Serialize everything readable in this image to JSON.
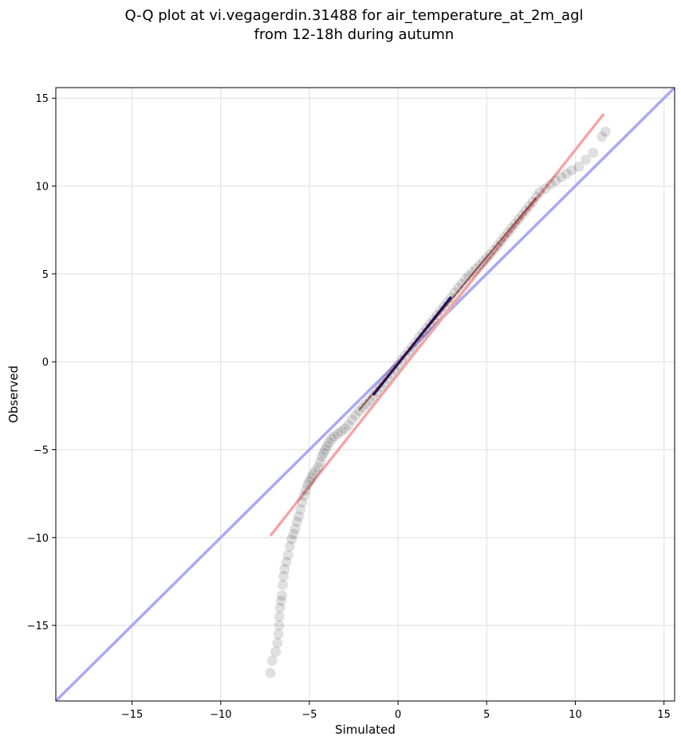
{
  "chart_data": {
    "type": "scatter",
    "title_line1": "Q-Q plot at vi.vegagerdin.31488 for air_temperature_at_2m_agl",
    "title_line2": "from 12-18h during autumn",
    "xlabel": "Simulated",
    "ylabel": "Observed",
    "xlim": [
      -19.3,
      15.6
    ],
    "ylim": [
      -19.3,
      15.6
    ],
    "xticks": [
      -15,
      -10,
      -5,
      0,
      5,
      10,
      15
    ],
    "yticks": [
      -15,
      -10,
      -5,
      0,
      5,
      10,
      15
    ],
    "tick_labels": {
      "-15": "−15",
      "-10": "−10",
      "-5": "−5",
      "0": "0",
      "5": "5",
      "10": "10",
      "15": "15"
    },
    "grid": true,
    "identity_line": {
      "color": "#aaaaf2",
      "x": [
        -19.3,
        15.6
      ],
      "y": [
        -19.3,
        15.6
      ]
    },
    "fit_line": {
      "color": "#f4a6a6",
      "x": [
        -7.2,
        11.6
      ],
      "y": [
        -9.9,
        14.1
      ]
    },
    "points_color": "#000000",
    "center_segment_color": "#1a1a8a",
    "tail_segment_color": "#8b0000",
    "quantiles": [
      [
        -7.2,
        -17.7
      ],
      [
        -7.1,
        -17.0
      ],
      [
        -6.9,
        -16.5
      ],
      [
        -6.8,
        -16.0
      ],
      [
        -6.75,
        -15.5
      ],
      [
        -6.7,
        -15.0
      ],
      [
        -6.7,
        -14.5
      ],
      [
        -6.65,
        -14.0
      ],
      [
        -6.6,
        -13.6
      ],
      [
        -6.55,
        -13.3
      ],
      [
        -6.5,
        -12.7
      ],
      [
        -6.45,
        -12.2
      ],
      [
        -6.4,
        -11.8
      ],
      [
        -6.3,
        -11.4
      ],
      [
        -6.2,
        -11.0
      ],
      [
        -6.1,
        -10.5
      ],
      [
        -6.0,
        -10.1
      ],
      [
        -5.9,
        -9.8
      ],
      [
        -5.8,
        -9.5
      ],
      [
        -5.7,
        -9.1
      ],
      [
        -5.6,
        -8.8
      ],
      [
        -5.5,
        -8.4
      ],
      [
        -5.4,
        -8.0
      ],
      [
        -5.3,
        -7.6
      ],
      [
        -5.2,
        -7.3
      ],
      [
        -5.1,
        -7.0
      ],
      [
        -5.0,
        -6.8
      ],
      [
        -4.9,
        -6.6
      ],
      [
        -4.8,
        -6.4
      ],
      [
        -4.65,
        -6.2
      ],
      [
        -4.5,
        -6.0
      ],
      [
        -4.4,
        -5.7
      ],
      [
        -4.3,
        -5.4
      ],
      [
        -4.2,
        -5.2
      ],
      [
        -4.1,
        -5.0
      ],
      [
        -4.0,
        -4.8
      ],
      [
        -3.9,
        -4.6
      ],
      [
        -3.75,
        -4.4
      ],
      [
        -3.6,
        -4.25
      ],
      [
        -3.4,
        -4.1
      ],
      [
        -3.2,
        -3.95
      ],
      [
        -3.0,
        -3.8
      ],
      [
        -2.8,
        -3.6
      ],
      [
        -2.6,
        -3.3
      ],
      [
        -2.4,
        -3.05
      ],
      [
        -2.2,
        -2.8
      ],
      [
        -2.0,
        -2.6
      ],
      [
        -1.8,
        -2.4
      ],
      [
        -1.6,
        -2.2
      ],
      [
        -1.4,
        -1.95
      ],
      [
        -1.2,
        -1.7
      ],
      [
        -1.0,
        -1.45
      ],
      [
        -0.8,
        -1.2
      ],
      [
        -0.6,
        -0.95
      ],
      [
        -0.4,
        -0.7
      ],
      [
        -0.2,
        -0.45
      ],
      [
        0.0,
        -0.2
      ],
      [
        0.2,
        0.1
      ],
      [
        0.4,
        0.35
      ],
      [
        0.6,
        0.6
      ],
      [
        0.8,
        0.85
      ],
      [
        1.0,
        1.1
      ],
      [
        1.2,
        1.4
      ],
      [
        1.4,
        1.65
      ],
      [
        1.6,
        1.9
      ],
      [
        1.8,
        2.15
      ],
      [
        2.0,
        2.4
      ],
      [
        2.2,
        2.65
      ],
      [
        2.4,
        2.9
      ],
      [
        2.6,
        3.15
      ],
      [
        2.8,
        3.4
      ],
      [
        3.0,
        3.65
      ],
      [
        3.2,
        3.95
      ],
      [
        3.4,
        4.2
      ],
      [
        3.6,
        4.45
      ],
      [
        3.8,
        4.7
      ],
      [
        4.0,
        4.9
      ],
      [
        4.2,
        5.1
      ],
      [
        4.4,
        5.3
      ],
      [
        4.6,
        5.5
      ],
      [
        4.8,
        5.7
      ],
      [
        5.0,
        5.9
      ],
      [
        5.2,
        6.1
      ],
      [
        5.4,
        6.35
      ],
      [
        5.6,
        6.6
      ],
      [
        5.8,
        6.85
      ],
      [
        6.0,
        7.1
      ],
      [
        6.2,
        7.35
      ],
      [
        6.4,
        7.6
      ],
      [
        6.6,
        7.85
      ],
      [
        6.8,
        8.1
      ],
      [
        7.0,
        8.35
      ],
      [
        7.2,
        8.6
      ],
      [
        7.4,
        8.85
      ],
      [
        7.6,
        9.1
      ],
      [
        7.8,
        9.4
      ],
      [
        8.0,
        9.65
      ],
      [
        8.3,
        9.85
      ],
      [
        8.6,
        10.1
      ],
      [
        8.9,
        10.3
      ],
      [
        9.2,
        10.5
      ],
      [
        9.5,
        10.7
      ],
      [
        9.8,
        10.9
      ],
      [
        10.2,
        11.1
      ],
      [
        10.6,
        11.5
      ],
      [
        11.0,
        11.9
      ],
      [
        11.5,
        12.8
      ],
      [
        11.7,
        13.1
      ]
    ]
  }
}
